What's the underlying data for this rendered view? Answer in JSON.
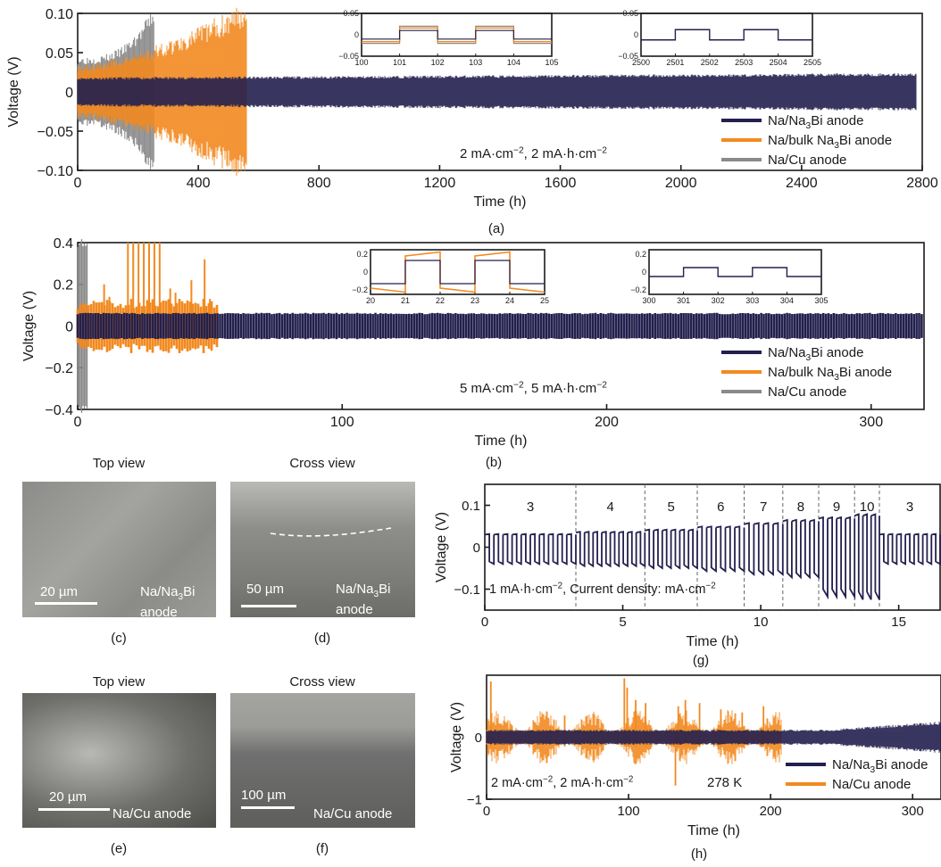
{
  "chart_data": [
    {
      "id": "a",
      "type": "line",
      "panel_label": "(a)",
      "xlabel": "Time (h)",
      "ylabel": "Voltage (V)",
      "xlim": [
        0,
        2800
      ],
      "ylim": [
        -0.1,
        0.1
      ],
      "xticks": [
        "0",
        "400",
        "800",
        "1200",
        "1600",
        "2000",
        "2400",
        "2800"
      ],
      "yticks": [
        "-0.10",
        "-0.05",
        "0",
        "0.05",
        "0.10"
      ],
      "condition": "2 mA·cm⁻², 2 mA·h·cm⁻²",
      "legend": [
        "Na/Na₃Bi anode",
        "Na/bulk Na₃Bi anode",
        "Na/Cu anode"
      ],
      "series": [
        {
          "name": "Na/Na₃Bi anode",
          "color": "#23204e",
          "x_end": 2780,
          "amp_start": 0.017,
          "amp_end": 0.022
        },
        {
          "name": "Na/bulk Na₃Bi anode",
          "color": "#f28a20",
          "x_end": 560,
          "amp_start": 0.03,
          "amp_end": 0.1
        },
        {
          "name": "Na/Cu anode",
          "color": "#8a8a8a",
          "x_end": 255,
          "amp_start": 0.04,
          "amp_end": 0.1
        }
      ],
      "insets": [
        {
          "xlim": [
            100,
            105
          ],
          "ylim": [
            -0.05,
            0.05
          ],
          "xticks": [
            "100",
            "101",
            "102",
            "103",
            "104",
            "105"
          ],
          "yticks": [
            "0.05",
            "0",
            "-0.05"
          ]
        },
        {
          "xlim": [
            2500,
            2505
          ],
          "ylim": [
            -0.05,
            0.05
          ],
          "xticks": [
            "2500",
            "2501",
            "2502",
            "2503",
            "2504",
            "2505"
          ],
          "yticks": [
            "0.05",
            "0",
            "-0.05"
          ]
        }
      ]
    },
    {
      "id": "b",
      "type": "line",
      "panel_label": "(b)",
      "xlabel": "Time (h)",
      "ylabel": "Voltage (V)",
      "xlim": [
        0,
        320
      ],
      "ylim": [
        -0.4,
        0.4
      ],
      "xticks": [
        "0",
        "100",
        "200",
        "300"
      ],
      "yticks": [
        "-0.4",
        "-0.2",
        "0",
        "0.2",
        "0.4"
      ],
      "condition": "5 mA·cm⁻², 5 mA·h·cm⁻²",
      "legend": [
        "Na/Na₃Bi anode",
        "Na/bulk Na₃Bi anode",
        "Na/Cu anode"
      ],
      "series": [
        {
          "name": "Na/Na₃Bi anode",
          "color": "#23204e",
          "x_end": 320,
          "amp": 0.06
        },
        {
          "name": "Na/bulk Na₃Bi anode",
          "color": "#f28a20",
          "x_end": 53,
          "amp": 0.09
        },
        {
          "name": "Na/Cu anode",
          "color": "#8a8a8a",
          "x_end": 4,
          "amp": 0.4
        }
      ],
      "insets": [
        {
          "xlim": [
            20,
            25
          ],
          "ylim": [
            -0.25,
            0.25
          ],
          "xticks": [
            "20",
            "21",
            "22",
            "23",
            "24",
            "25"
          ],
          "yticks": [
            "0.2",
            "0",
            "-0.2"
          ]
        },
        {
          "xlim": [
            300,
            305
          ],
          "ylim": [
            -0.25,
            0.25
          ],
          "xticks": [
            "300",
            "301",
            "302",
            "303",
            "304",
            "305"
          ],
          "yticks": [
            "0.2",
            "0",
            "-0.2"
          ]
        }
      ]
    },
    {
      "id": "g",
      "type": "line",
      "panel_label": "(g)",
      "xlabel": "Time (h)",
      "ylabel": "Voltage (V)",
      "xlim": [
        0,
        16.5
      ],
      "ylim": [
        -0.15,
        0.15
      ],
      "xticks": [
        "0",
        "5",
        "10",
        "15"
      ],
      "yticks": [
        "0.1",
        "0",
        "-0.1"
      ],
      "condition": "1 mA·h·cm⁻², Current density: mA·cm⁻²",
      "segments": [
        {
          "label": "3",
          "x0": 0,
          "x1": 3.3,
          "amp": 0.03
        },
        {
          "label": "4",
          "x0": 3.3,
          "x1": 5.8,
          "amp": 0.035
        },
        {
          "label": "5",
          "x0": 5.8,
          "x1": 7.7,
          "amp": 0.04
        },
        {
          "label": "6",
          "x0": 7.7,
          "x1": 9.4,
          "amp": 0.047
        },
        {
          "label": "7",
          "x0": 9.4,
          "x1": 10.8,
          "amp": 0.055
        },
        {
          "label": "8",
          "x0": 10.8,
          "x1": 12.1,
          "amp": 0.062
        },
        {
          "label": "9",
          "x0": 12.1,
          "x1": 13.4,
          "amp": 0.068
        },
        {
          "label": "10",
          "x0": 13.4,
          "x1": 14.3,
          "amp": 0.075
        },
        {
          "label": "3",
          "x0": 14.3,
          "x1": 16.5,
          "amp": 0.03
        }
      ],
      "series": [
        {
          "name": "Na/Na₃Bi anode",
          "color": "#23204e"
        }
      ]
    },
    {
      "id": "h",
      "type": "line",
      "panel_label": "(h)",
      "xlabel": "Time (h)",
      "ylabel": "Voltage (V)",
      "xlim": [
        0,
        320
      ],
      "ylim": [
        -1,
        1
      ],
      "xticks": [
        "0",
        "100",
        "200",
        "300"
      ],
      "yticks": [
        "0",
        "-1"
      ],
      "condition": "2 mA·cm⁻², 2 mA·h·cm⁻²",
      "temperature": "278 K",
      "legend": [
        "Na/Na₃Bi anode",
        "Na/Cu anode"
      ],
      "series": [
        {
          "name": "Na/Na₃Bi anode",
          "color": "#23204e",
          "x_end": 320,
          "amp": 0.12
        },
        {
          "name": "Na/Cu anode",
          "color": "#f28a20",
          "x_end": 208,
          "amp": 0.2
        }
      ]
    }
  ],
  "sem_images": [
    {
      "id": "c",
      "title": "Top view",
      "scale_bar": "20 µm",
      "sample": "Na/Na₃Bi anode",
      "label": "(c)"
    },
    {
      "id": "d",
      "title": "Cross view",
      "scale_bar": "50 µm",
      "sample": "Na/Na₃Bi anode",
      "label": "(d)"
    },
    {
      "id": "e",
      "title": "Top view",
      "scale_bar": "20 µm",
      "sample": "Na/Cu anode",
      "label": "(e)"
    },
    {
      "id": "f",
      "title": "Cross view",
      "scale_bar": "100 µm",
      "sample": "Na/Cu anode",
      "label": "(f)"
    }
  ]
}
